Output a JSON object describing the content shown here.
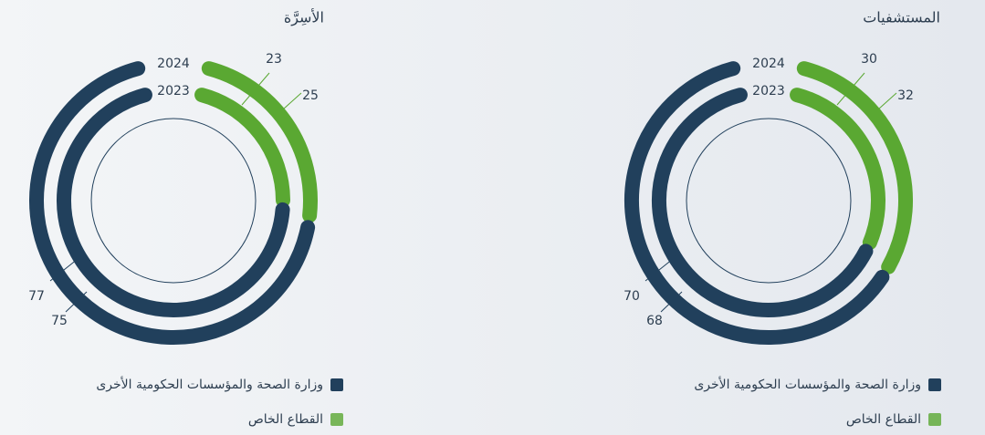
{
  "chart_data": [
    {
      "type": "donut",
      "title": "الأسِرَّة",
      "rings": [
        "2024",
        "2023"
      ],
      "series": [
        {
          "name": "وزارة الصحة والمؤسسات الحكومية الأخرى",
          "color": "#21405c",
          "values": [
            75,
            77
          ]
        },
        {
          "name": "القطاع الخاص",
          "color": "#5aa832",
          "values": [
            25,
            23
          ]
        }
      ]
    },
    {
      "type": "donut",
      "title": "المستشفيات",
      "rings": [
        "2024",
        "2023"
      ],
      "series": [
        {
          "name": "وزارة الصحة والمؤسسات الحكومية الأخرى",
          "color": "#21405c",
          "values": [
            68,
            70
          ]
        },
        {
          "name": "القطاع الخاص",
          "color": "#5aa832",
          "values": [
            32,
            30
          ]
        }
      ]
    }
  ]
}
